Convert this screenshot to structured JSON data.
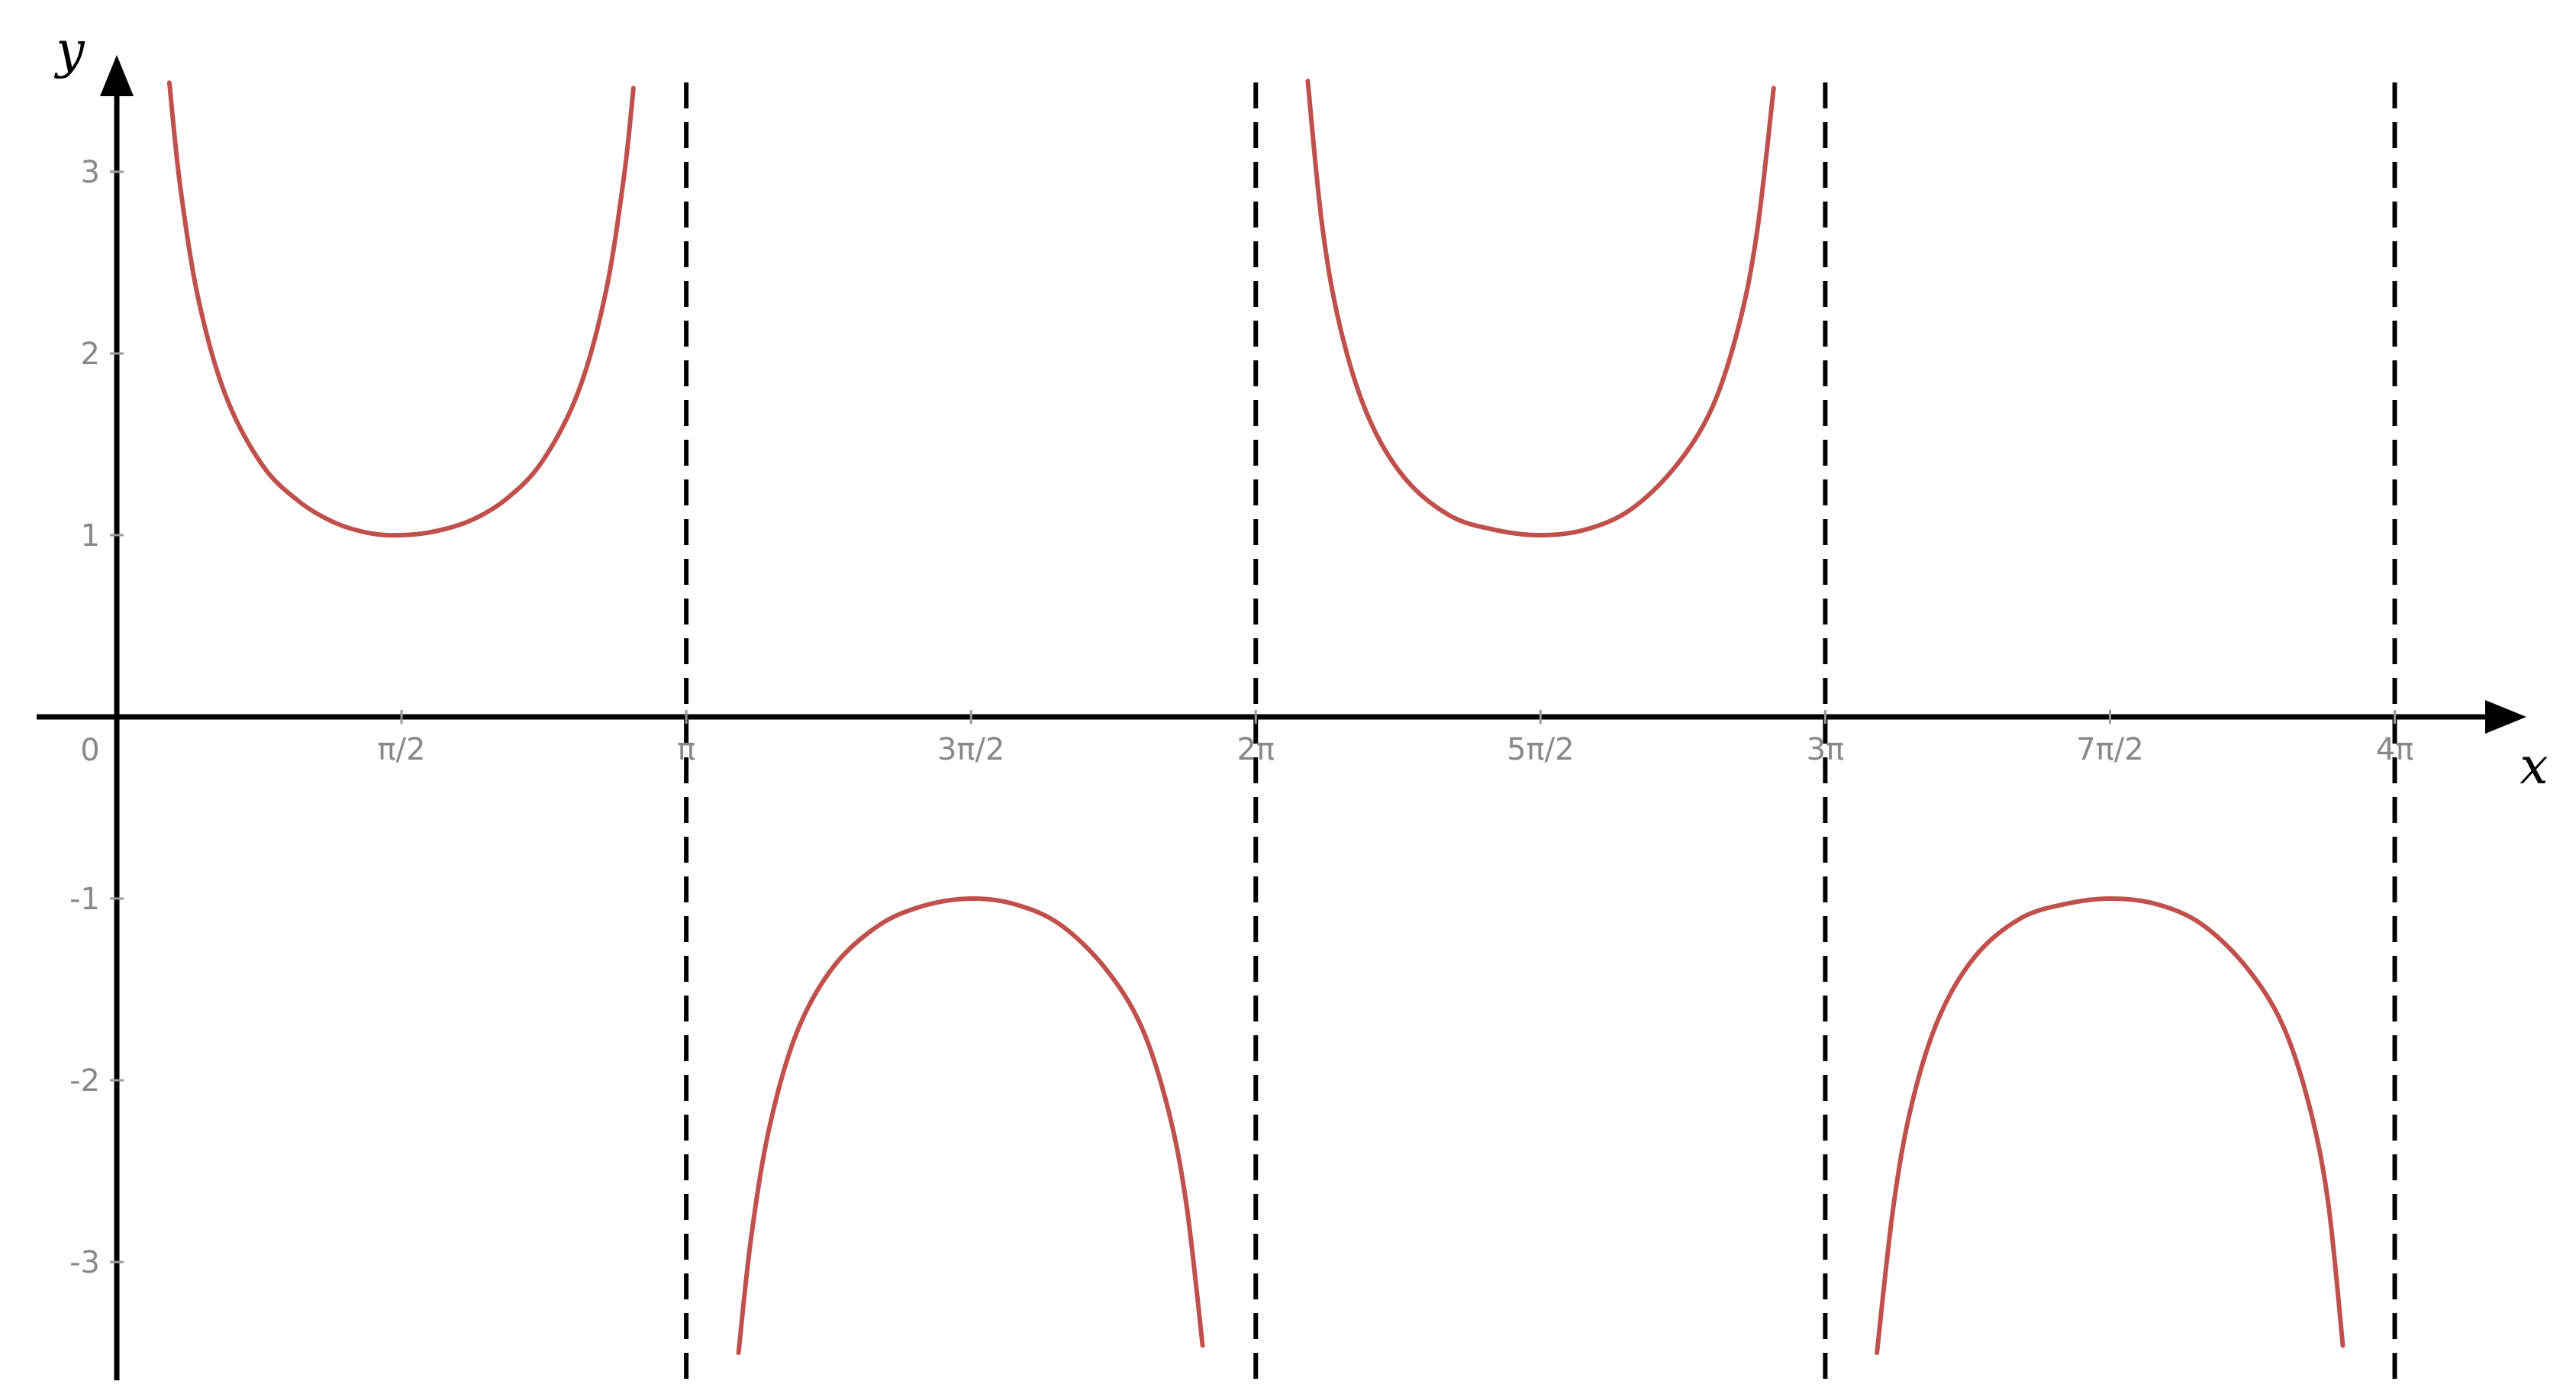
{
  "chart_data": {
    "type": "line",
    "title": "",
    "xlabel": "x",
    "ylabel": "y",
    "xlim": [
      0,
      12.566
    ],
    "ylim": [
      -3.65,
      3.65
    ],
    "grid": false,
    "legend": "none",
    "curve_color": "#c0504d",
    "asymptote_color": "#000000",
    "axis_color": "#000000",
    "tick_label_color": "#888888",
    "origin_label": "0",
    "x_ticks": [
      {
        "value": 1.5708,
        "label": "π/2"
      },
      {
        "value": 3.1416,
        "label": "π"
      },
      {
        "value": 4.7124,
        "label": "3π/2"
      },
      {
        "value": 6.2832,
        "label": "2π"
      },
      {
        "value": 7.854,
        "label": "5π/2"
      },
      {
        "value": 9.4248,
        "label": "3π"
      },
      {
        "value": 10.9956,
        "label": "7π/2"
      },
      {
        "value": 12.5664,
        "label": "4π"
      }
    ],
    "y_ticks": [
      {
        "value": 3,
        "label": "3"
      },
      {
        "value": 2,
        "label": "2"
      },
      {
        "value": 1,
        "label": "1"
      },
      {
        "value": -1,
        "label": "-1"
      },
      {
        "value": -2,
        "label": "-2"
      },
      {
        "value": -3,
        "label": "-3"
      }
    ],
    "asymptotes_x": [
      3.1416,
      6.2832,
      9.4248,
      12.5664
    ],
    "series": [
      {
        "x": [
          0.29,
          0.35,
          0.45,
          0.6,
          0.8,
          1.0,
          1.2,
          1.4,
          1.5708,
          1.75,
          1.95,
          2.15,
          2.35,
          2.55,
          2.7,
          2.8,
          2.85
        ],
        "y": [
          3.49,
          2.92,
          2.3,
          1.77,
          1.39,
          1.19,
          1.07,
          1.01,
          1.0,
          1.02,
          1.08,
          1.2,
          1.41,
          1.8,
          2.35,
          2.99,
          3.46
        ]
      },
      {
        "x": [
          3.43,
          3.5,
          3.6,
          3.75,
          3.95,
          4.2,
          4.45,
          4.7124,
          4.95,
          5.2,
          5.45,
          5.65,
          5.8,
          5.9,
          5.99
        ],
        "y": [
          -3.5,
          -2.86,
          -2.26,
          -1.74,
          -1.38,
          -1.15,
          -1.04,
          -1.0,
          -1.03,
          -1.14,
          -1.38,
          -1.7,
          -2.16,
          -2.68,
          -3.46
        ]
      },
      {
        "x": [
          6.57,
          6.65,
          6.75,
          6.9,
          7.1,
          7.35,
          7.6,
          7.854,
          8.1,
          8.35,
          8.6,
          8.8,
          8.95,
          9.05,
          9.14
        ],
        "y": [
          3.5,
          2.7,
          2.14,
          1.66,
          1.32,
          1.11,
          1.03,
          1.0,
          1.03,
          1.14,
          1.38,
          1.7,
          2.16,
          2.68,
          3.46
        ]
      },
      {
        "x": [
          9.71,
          9.8,
          9.9,
          10.05,
          10.25,
          10.5,
          10.75,
          10.9956,
          11.25,
          11.5,
          11.75,
          11.95,
          12.1,
          12.2,
          12.28
        ],
        "y": [
          -3.5,
          -2.7,
          -2.14,
          -1.66,
          -1.32,
          -1.11,
          -1.03,
          -1.0,
          -1.03,
          -1.14,
          -1.38,
          -1.7,
          -2.16,
          -2.68,
          -3.46
        ]
      }
    ]
  }
}
